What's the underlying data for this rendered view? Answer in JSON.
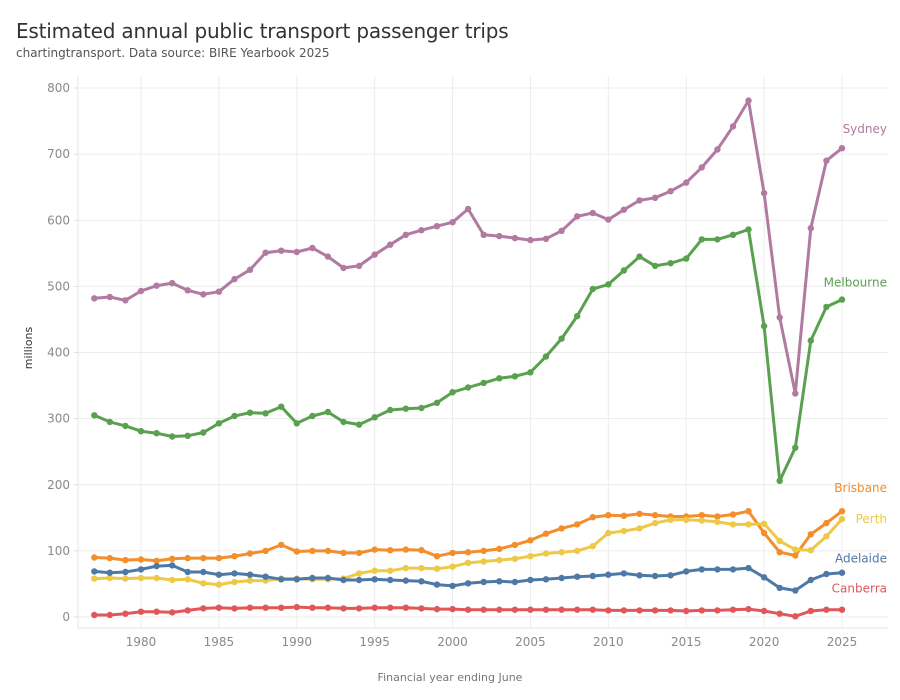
{
  "chart_data": {
    "type": "line",
    "title": "Estimated annual public transport passenger trips",
    "subtitle": "chartingtransport. Data source: BIRE Yearbook 2025",
    "xlabel": "Financial year ending June",
    "ylabel": "millions",
    "xlim": [
      1976,
      2028
    ],
    "ylim": [
      0,
      800
    ],
    "yticks": [
      0,
      100,
      200,
      300,
      400,
      500,
      600,
      700,
      800
    ],
    "xticks": [
      1980,
      1985,
      1990,
      1995,
      2000,
      2005,
      2010,
      2015,
      2020,
      2025
    ],
    "grid": true,
    "legend": "direct-labels-right",
    "x": [
      1977,
      1978,
      1979,
      1980,
      1981,
      1982,
      1983,
      1984,
      1985,
      1986,
      1987,
      1988,
      1989,
      1990,
      1991,
      1992,
      1993,
      1994,
      1995,
      1996,
      1997,
      1998,
      1999,
      2000,
      2001,
      2002,
      2003,
      2004,
      2005,
      2006,
      2007,
      2008,
      2009,
      2010,
      2011,
      2012,
      2013,
      2014,
      2015,
      2016,
      2017,
      2018,
      2019,
      2020,
      2021,
      2022,
      2023,
      2024,
      2025
    ],
    "series": [
      {
        "name": "Sydney",
        "color": "#b07aa1",
        "values": [
          482,
          484,
          479,
          493,
          501,
          505,
          494,
          488,
          492,
          511,
          525,
          551,
          554,
          552,
          558,
          545,
          528,
          531,
          548,
          563,
          578,
          585,
          591,
          597,
          617,
          578,
          576,
          573,
          570,
          572,
          584,
          606,
          611,
          601,
          616,
          630,
          634,
          644,
          657,
          680,
          707,
          742,
          781,
          641,
          453,
          338,
          588,
          690,
          709
        ]
      },
      {
        "name": "Melbourne",
        "color": "#59a14f",
        "values": [
          305,
          295,
          289,
          281,
          278,
          273,
          274,
          279,
          293,
          304,
          309,
          308,
          318,
          293,
          304,
          310,
          295,
          291,
          302,
          313,
          315,
          316,
          324,
          340,
          347,
          354,
          361,
          364,
          370,
          394,
          421,
          455,
          496,
          503,
          524,
          545,
          531,
          535,
          542,
          571,
          571,
          578,
          586,
          440,
          206,
          256,
          418,
          469,
          480
        ]
      },
      {
        "name": "Brisbane",
        "color": "#f28e2b",
        "values": [
          90,
          89,
          86,
          87,
          85,
          88,
          89,
          89,
          89,
          92,
          96,
          100,
          109,
          99,
          100,
          100,
          97,
          97,
          102,
          101,
          102,
          101,
          92,
          97,
          98,
          100,
          103,
          109,
          116,
          126,
          134,
          140,
          151,
          154,
          153,
          156,
          154,
          152,
          152,
          154,
          152,
          155,
          160,
          127,
          98,
          93,
          125,
          142,
          160
        ]
      },
      {
        "name": "Perth",
        "color": "#edc948",
        "values": [
          58,
          59,
          58,
          59,
          59,
          56,
          57,
          51,
          49,
          53,
          55,
          55,
          58,
          58,
          57,
          57,
          58,
          66,
          70,
          70,
          74,
          74,
          73,
          76,
          82,
          84,
          86,
          88,
          92,
          96,
          98,
          100,
          107,
          127,
          130,
          134,
          142,
          147,
          147,
          146,
          144,
          140,
          140,
          141,
          115,
          102,
          101,
          122,
          148
        ]
      },
      {
        "name": "Adelaide",
        "color": "#4e79a7",
        "values": [
          69,
          67,
          68,
          72,
          77,
          78,
          68,
          68,
          64,
          66,
          64,
          61,
          57,
          57,
          59,
          59,
          56,
          56,
          57,
          56,
          55,
          54,
          49,
          47,
          51,
          53,
          54,
          53,
          56,
          57,
          59,
          61,
          62,
          64,
          66,
          63,
          62,
          63,
          69,
          72,
          72,
          72,
          74,
          60,
          44,
          40,
          56,
          65,
          67
        ]
      },
      {
        "name": "Canberra",
        "color": "#e15759",
        "values": [
          3,
          3,
          5,
          8,
          8,
          7,
          10,
          13,
          14,
          13,
          14,
          14,
          14,
          15,
          14,
          14,
          13,
          13,
          14,
          14,
          14,
          13,
          12,
          12,
          11,
          11,
          11,
          11,
          11,
          11,
          11,
          11,
          11,
          10,
          10,
          10,
          10,
          10,
          9,
          10,
          10,
          11,
          12,
          9,
          5,
          1,
          9,
          11,
          11
        ]
      }
    ]
  }
}
